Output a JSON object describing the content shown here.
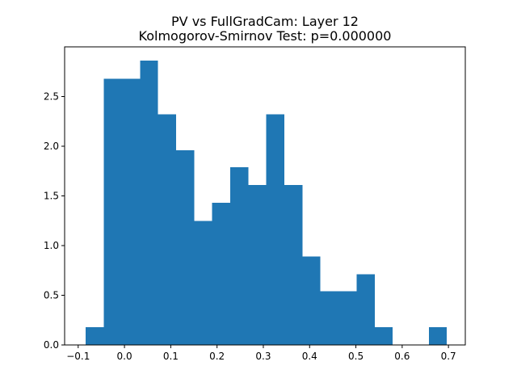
{
  "chart_data": {
    "type": "bar",
    "title": "PV vs FullGradCam: Layer 12",
    "subtitle": "Kolmogorov-Smirnov Test: p=0.000000",
    "xlabel": "",
    "ylabel": "",
    "xlim": [
      -0.1293,
      0.7364
    ],
    "ylim": [
      0,
      3.0
    ],
    "bin_edges": [
      -0.0835,
      -0.0445,
      -0.0055,
      0.0335,
      0.0725,
      0.1115,
      0.1505,
      0.1895,
      0.2285,
      0.2675,
      0.3065,
      0.3455,
      0.3845,
      0.4235,
      0.4625,
      0.5015,
      0.5405,
      0.5795,
      0.6185,
      0.6575,
      0.6965
    ],
    "values": [
      0.18,
      2.68,
      2.68,
      2.86,
      2.32,
      1.96,
      1.25,
      1.43,
      1.79,
      1.61,
      2.32,
      1.61,
      0.89,
      0.54,
      0.54,
      0.71,
      0.18,
      0.0,
      0.0,
      0.18
    ],
    "x_ticks": [
      -0.1,
      0.0,
      0.1,
      0.2,
      0.3,
      0.4,
      0.5,
      0.6,
      0.7
    ],
    "x_tick_labels": [
      "−0.1",
      "0.0",
      "0.1",
      "0.2",
      "0.3",
      "0.4",
      "0.5",
      "0.6",
      "0.7"
    ],
    "y_ticks": [
      0.0,
      0.5,
      1.0,
      1.5,
      2.0,
      2.5
    ],
    "y_tick_labels": [
      "0.0",
      "0.5",
      "1.0",
      "1.5",
      "2.0",
      "2.5"
    ],
    "bar_color": "#1f77b4",
    "grid": false,
    "legend": "none"
  }
}
